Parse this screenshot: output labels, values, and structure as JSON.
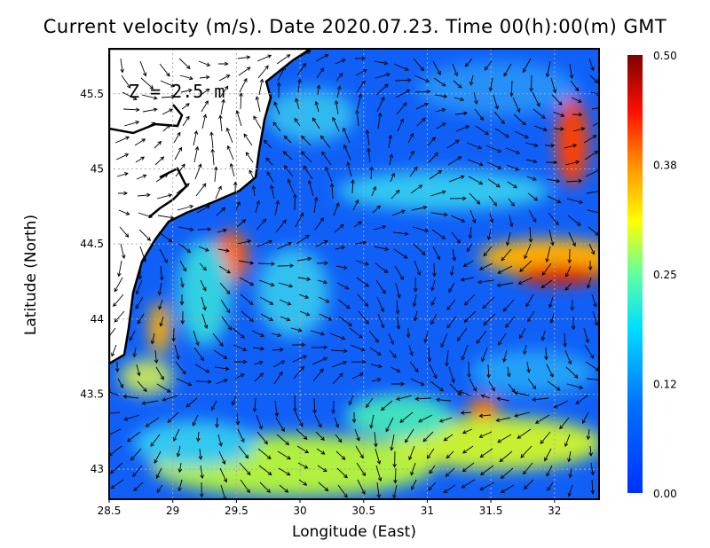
{
  "chart_data": {
    "type": "heatmap",
    "title": "Current velocity (m/s). Date 2020.07.23. Time 00(h):00(m) GMT",
    "xlabel": "Longitude (East)",
    "ylabel": "Latitude (North)",
    "annotation": "Z = 2.5 m",
    "xlim": [
      28.5,
      32.35
    ],
    "ylim": [
      42.8,
      45.8
    ],
    "xticks": [
      "28.5",
      "29",
      "29.5",
      "30",
      "30.5",
      "31",
      "31.5",
      "32"
    ],
    "xtick_values": [
      28.5,
      29,
      29.5,
      30,
      30.5,
      31,
      31.5,
      32
    ],
    "yticks": [
      "43",
      "43.5",
      "44",
      "44.5",
      "45",
      "45.5"
    ],
    "ytick_values": [
      43,
      43.5,
      44,
      44.5,
      45,
      45.5
    ],
    "grid": true,
    "colorbar": {
      "ticks": [
        "0.00",
        "0.12",
        "0.25",
        "0.38",
        "0.50"
      ],
      "tick_values": [
        0,
        0.125,
        0.25,
        0.375,
        0.5
      ],
      "range": [
        0,
        0.5
      ],
      "colors": [
        "#0030ff",
        "#0090ff",
        "#00e0ff",
        "#80ff80",
        "#ffff00",
        "#ff8000",
        "#ff0000",
        "#800000"
      ]
    },
    "hotspots": [
      {
        "lon": 29.4,
        "lat": 44.45,
        "speed": 0.42
      },
      {
        "lon": 32.1,
        "lat": 45.2,
        "speed": 0.45
      },
      {
        "lon": 32.1,
        "lat": 44.35,
        "speed": 0.46
      },
      {
        "lon": 31.5,
        "lat": 44.4,
        "speed": 0.36
      },
      {
        "lon": 31.5,
        "lat": 43.4,
        "speed": 0.38
      },
      {
        "lon": 28.75,
        "lat": 43.95,
        "speed": 0.33
      },
      {
        "lon": 30.3,
        "lat": 43.1,
        "speed": 0.3
      },
      {
        "lon": 31.5,
        "lat": 43.2,
        "speed": 0.3
      },
      {
        "lon": 28.65,
        "lat": 43.55,
        "speed": 0.3
      }
    ]
  }
}
